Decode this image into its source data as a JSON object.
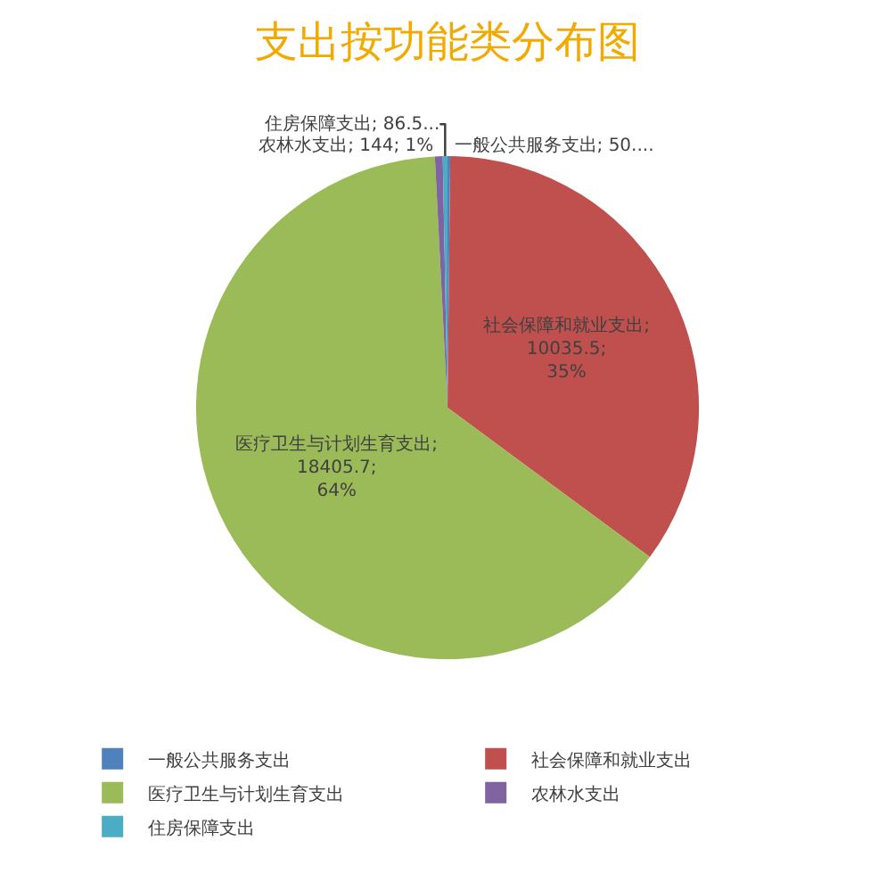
{
  "chart_data": {
    "type": "pie",
    "title": "支出按功能类分布图",
    "categories": [
      "一般公共服务支出",
      "社会保障和就业支出",
      "医疗卫生与计划生育支出",
      "农林水支出",
      "住房保障支出"
    ],
    "values": [
      50,
      10035.5,
      18405.7,
      144,
      86.5
    ],
    "colors": [
      "#4f81bd",
      "#c0504d",
      "#9bbb59",
      "#8064a2",
      "#4bacc6"
    ],
    "value_labels": [
      "一般公共服务支出; 50....",
      "社会保障和就业支出; 10035.5; 35%",
      "医疗卫生与计划生育支出; 18405.7; 64%",
      "农林水支出; 144; 1%",
      "住房保障支出; 86.5..."
    ],
    "legend": "bottom"
  }
}
